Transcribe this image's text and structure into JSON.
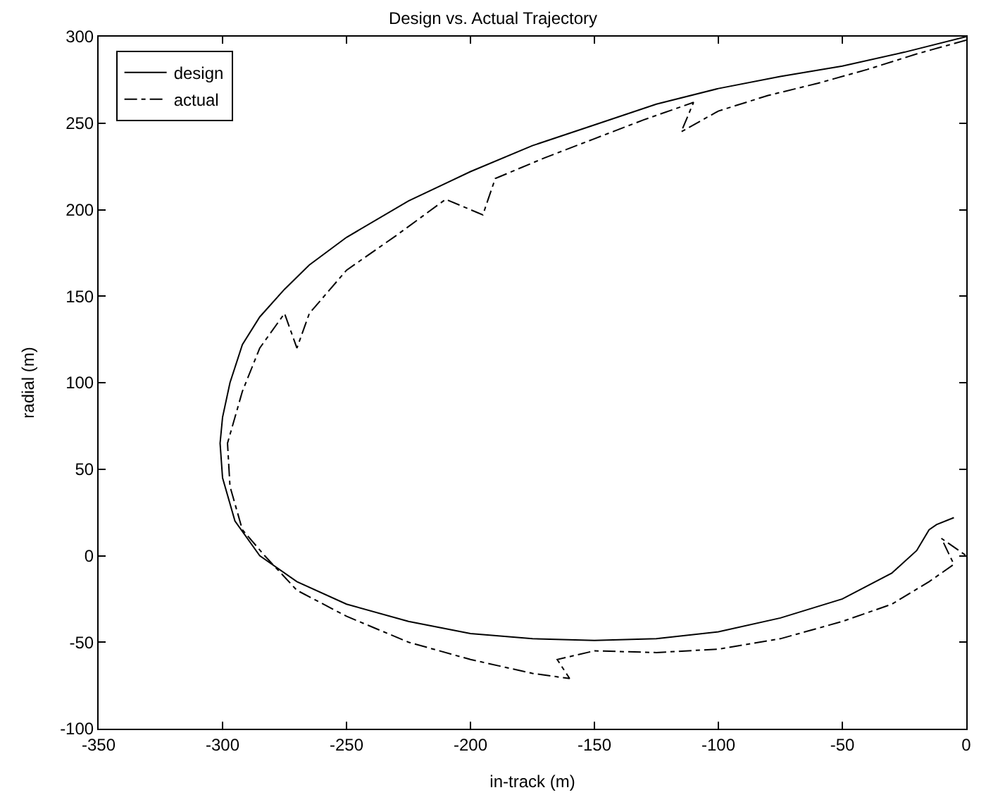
{
  "chart_data": {
    "type": "line",
    "title": "Design vs. Actual Trajectory",
    "xlabel": "in-track (m)",
    "ylabel": "radial (m)",
    "xlim": [
      -350,
      0
    ],
    "xticks": [
      -350,
      -300,
      -250,
      -200,
      -150,
      -100,
      -50,
      0
    ],
    "ylim": [
      -100,
      300
    ],
    "yticks": [
      -100,
      -50,
      0,
      50,
      100,
      150,
      200,
      250,
      300
    ],
    "legend": "top left",
    "series": [
      {
        "name": "design",
        "color": "#000000",
        "line_style": "solid",
        "x": [
          0,
          -25,
          -50,
          -75,
          -100,
          -125,
          -150,
          -175,
          -200,
          -225,
          -250,
          -265,
          -275,
          -285,
          -292,
          -297,
          -300,
          -301,
          -300,
          -295,
          -285,
          -270,
          -250,
          -225,
          -200,
          -175,
          -150,
          -125,
          -100,
          -75,
          -50,
          -30,
          -20,
          -15,
          -12,
          -5
        ],
        "values": [
          300,
          291,
          283,
          277,
          270,
          261,
          249,
          237,
          222,
          205,
          184,
          168,
          154,
          138,
          122,
          100,
          80,
          65,
          45,
          20,
          0,
          -15,
          -28,
          -38,
          -45,
          -48,
          -49,
          -48,
          -44,
          -36,
          -25,
          -10,
          3,
          15,
          18,
          22
        ]
      },
      {
        "name": "actual",
        "color": "#000000",
        "line_style": "dashdot",
        "x": [
          0,
          -20,
          -40,
          -60,
          -80,
          -100,
          -115,
          -110,
          -130,
          -150,
          -170,
          -190,
          -195,
          -210,
          -230,
          -250,
          -265,
          -270,
          -275,
          -285,
          -292,
          -298,
          -297,
          -292,
          -283,
          -270,
          -250,
          -225,
          -200,
          -175,
          -160,
          -165,
          -150,
          -125,
          -100,
          -75,
          -50,
          -30,
          -15,
          -5,
          -10,
          0
        ],
        "values": [
          298,
          290,
          281,
          273,
          266,
          257,
          245,
          262,
          252,
          241,
          230,
          218,
          197,
          206,
          185,
          165,
          140,
          120,
          140,
          120,
          95,
          65,
          40,
          15,
          0,
          -20,
          -35,
          -50,
          -60,
          -68,
          -71,
          -60,
          -55,
          -56,
          -54,
          -48,
          -38,
          -28,
          -15,
          -5,
          10,
          0
        ]
      }
    ]
  }
}
